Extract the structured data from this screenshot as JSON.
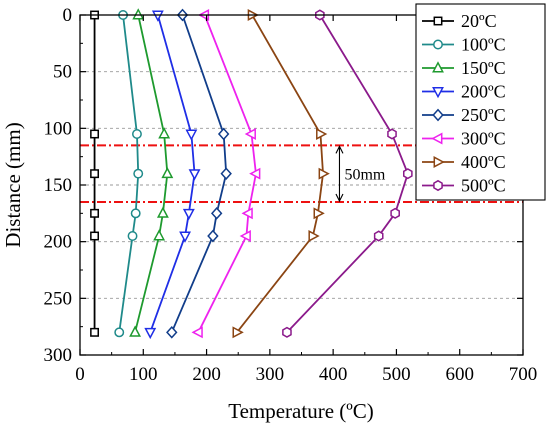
{
  "chart_data": {
    "type": "line",
    "title": "",
    "xlabel": "Temperature (ºC)",
    "ylabel": "Distance (mm)",
    "xlim": [
      0,
      700
    ],
    "ylim": [
      0,
      300
    ],
    "y_inverted": true,
    "xticks": [
      "0",
      "100",
      "200",
      "300",
      "400",
      "500",
      "600",
      "700"
    ],
    "yticks": [
      "0",
      "50",
      "100",
      "150",
      "200",
      "250",
      "300"
    ],
    "grid": "horizontal dashed",
    "legend_position": "top-right",
    "y": [
      0,
      105,
      140,
      175,
      195,
      280
    ],
    "series": [
      {
        "name": "20ºC",
        "color": "#000000",
        "marker": "square",
        "x": [
          23,
          23,
          23,
          23,
          23,
          23
        ]
      },
      {
        "name": "100ºC",
        "color": "#1f8a8a",
        "marker": "circle",
        "x": [
          68,
          90,
          92,
          88,
          83,
          62
        ]
      },
      {
        "name": "150ºC",
        "color": "#1e9a2e",
        "marker": "triangle-up",
        "x": [
          92,
          133,
          138,
          131,
          125,
          87
        ]
      },
      {
        "name": "200ºC",
        "color": "#1f2ee6",
        "marker": "triangle-down",
        "x": [
          123,
          176,
          181,
          172,
          166,
          111
        ]
      },
      {
        "name": "250ºC",
        "color": "#113d8a",
        "marker": "diamond",
        "x": [
          162,
          227,
          231,
          216,
          210,
          145
        ]
      },
      {
        "name": "300ºC",
        "color": "#ee22ee",
        "marker": "triangle-left",
        "x": [
          197,
          271,
          278,
          266,
          263,
          187
        ]
      },
      {
        "name": "400ºC",
        "color": "#8b4513",
        "marker": "triangle-right",
        "x": [
          272,
          380,
          384,
          376,
          368,
          248
        ]
      },
      {
        "name": "500ºC",
        "color": "#8b1a8b",
        "marker": "hexagon",
        "x": [
          379,
          493,
          518,
          498,
          472,
          327
        ]
      }
    ],
    "reference_lines": [
      {
        "y": 115,
        "color": "#ee1111",
        "style": "dash-dot"
      },
      {
        "y": 165,
        "color": "#ee1111",
        "style": "dash-dot"
      }
    ],
    "annotations": [
      {
        "text": "50mm",
        "x": 410,
        "y_from": 115,
        "y_to": 165
      }
    ]
  }
}
